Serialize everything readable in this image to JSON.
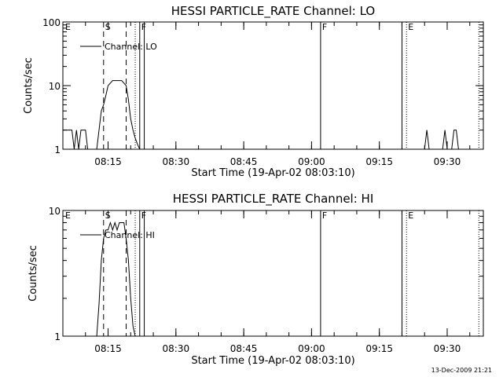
{
  "chart_data": [
    {
      "type": "line",
      "title": "HESSI PARTICLE_RATE Channel: LO",
      "xlabel": "Start Time (19-Apr-02 08:03:10)",
      "ylabel": "Counts/sec",
      "yscale": "log",
      "ylim": [
        1,
        100
      ],
      "xlim": [
        "08:05",
        "09:38"
      ],
      "xticks": [
        "08:15",
        "08:30",
        "08:45",
        "09:00",
        "09:15",
        "09:30"
      ],
      "yticks": [
        "1",
        "10",
        "100"
      ],
      "legend": {
        "placement": "top-left",
        "label": "Channel: LO"
      },
      "markers": [
        {
          "label": "E",
          "time": "08:05",
          "style": "none"
        },
        {
          "label": "S",
          "time": "08:14",
          "style": "dashed"
        },
        {
          "label": "",
          "time": "08:19",
          "style": "dashed"
        },
        {
          "label": "",
          "time": "08:21",
          "style": "dotted"
        },
        {
          "label": "F",
          "time": "08:22",
          "style": "solid"
        },
        {
          "label": "",
          "time": "08:23",
          "style": "solid"
        },
        {
          "label": "F",
          "time": "09:02",
          "style": "solid"
        },
        {
          "label": "",
          "time": "09:20",
          "style": "solid"
        },
        {
          "label": "E",
          "time": "09:21",
          "style": "dotted"
        },
        {
          "label": "",
          "time": "09:37",
          "style": "dotted"
        }
      ],
      "series": [
        {
          "x": [
            "08:05",
            "08:07",
            "08:07.5",
            "08:08",
            "08:08.5",
            "08:09",
            "08:10",
            "08:10.5",
            "08:11",
            "08:11.5",
            "08:12",
            "08:12.5",
            "08:13",
            "08:13.5",
            "08:14",
            "08:14.5",
            "08:15",
            "08:16",
            "08:17",
            "08:18",
            "08:19",
            "08:19.5",
            "08:20",
            "08:20.5",
            "08:21",
            "08:21.5",
            "08:22"
          ],
          "y": [
            2,
            2,
            1,
            2,
            1,
            2,
            2,
            1,
            1,
            1,
            1,
            1,
            2,
            4,
            5,
            7,
            10,
            12,
            12,
            12,
            10,
            6,
            3,
            2,
            1.5,
            1.2,
            1
          ]
        },
        {
          "x": [
            "09:25",
            "09:25.5",
            "09:26",
            "09:29",
            "09:29.5",
            "09:30",
            "09:31",
            "09:31.5",
            "09:32",
            "09:32.5",
            "09:33"
          ],
          "y": [
            1,
            2,
            1,
            1,
            2,
            1,
            1,
            2,
            2,
            1,
            1
          ]
        }
      ]
    },
    {
      "type": "line",
      "title": "HESSI PARTICLE_RATE Channel: HI",
      "xlabel": "Start Time (19-Apr-02 08:03:10)",
      "ylabel": "Counts/sec",
      "yscale": "log",
      "ylim": [
        1,
        10
      ],
      "xlim": [
        "08:05",
        "09:38"
      ],
      "xticks": [
        "08:15",
        "08:30",
        "08:45",
        "09:00",
        "09:15",
        "09:30"
      ],
      "yticks": [
        "1",
        "10"
      ],
      "legend": {
        "placement": "top-left",
        "label": "Channel: HI"
      },
      "markers": [
        {
          "label": "E",
          "time": "08:05",
          "style": "none"
        },
        {
          "label": "S",
          "time": "08:14",
          "style": "dashed"
        },
        {
          "label": "",
          "time": "08:19",
          "style": "dashed"
        },
        {
          "label": "",
          "time": "08:21",
          "style": "dotted"
        },
        {
          "label": "F",
          "time": "08:22",
          "style": "solid"
        },
        {
          "label": "",
          "time": "08:23",
          "style": "solid"
        },
        {
          "label": "F",
          "time": "09:02",
          "style": "solid"
        },
        {
          "label": "",
          "time": "09:20",
          "style": "solid"
        },
        {
          "label": "E",
          "time": "09:21",
          "style": "dotted"
        },
        {
          "label": "",
          "time": "09:37",
          "style": "dotted"
        }
      ],
      "series": [
        {
          "x": [
            "08:12.5",
            "08:13",
            "08:13.5",
            "08:14",
            "08:14.5",
            "08:15",
            "08:15.5",
            "08:16",
            "08:16.5",
            "08:17",
            "08:17.5",
            "08:18",
            "08:18.5",
            "08:19",
            "08:19.5",
            "08:20",
            "08:20.5",
            "08:21"
          ],
          "y": [
            1,
            1.8,
            4,
            6,
            7,
            7,
            8,
            7,
            8,
            7,
            8,
            8,
            8,
            6,
            4,
            2,
            1.2,
            1
          ]
        }
      ]
    }
  ],
  "footer": {
    "date": "13-Dec-2009 21:21"
  }
}
